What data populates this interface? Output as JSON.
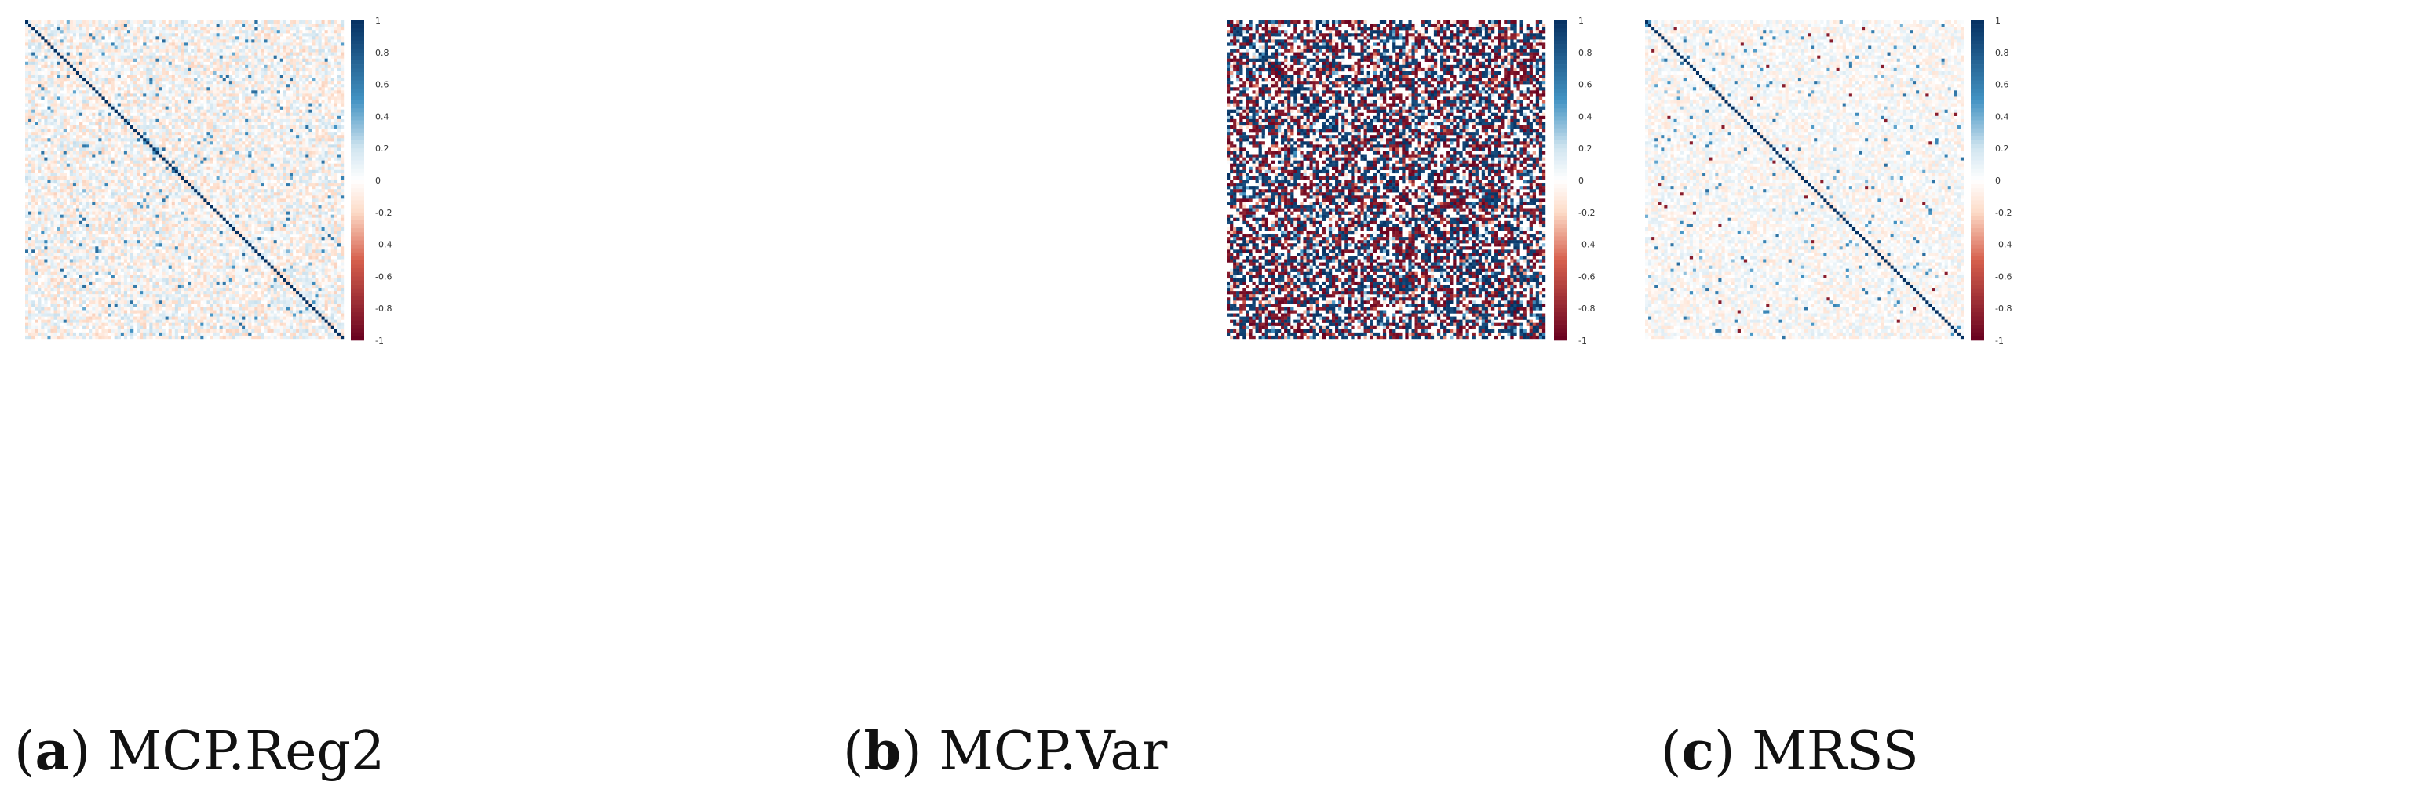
{
  "colors": {
    "neg_strong": "#67001f",
    "neg_mid": "#d6604d",
    "neg_light": "#fddbc7",
    "zero": "#ffffff",
    "pos_light": "#d1e5f0",
    "pos_mid": "#4393c3",
    "pos_strong": "#053061"
  },
  "colorbar_ticks": [
    "1",
    "0.8",
    "0.6",
    "0.4",
    "0.2",
    "0",
    "-0.2",
    "-0.4",
    "-0.6",
    "-0.8",
    "-1"
  ],
  "panels": [
    {
      "paren_open": "(",
      "letter": "a",
      "paren_close": ")",
      "name": "MCP.Reg2"
    },
    {
      "paren_open": "(",
      "letter": "b",
      "paren_close": ")",
      "name": "MCP.Var"
    },
    {
      "paren_open": "(",
      "letter": "c",
      "paren_close": ")",
      "name": "MRSS"
    }
  ],
  "chart_data": [
    {
      "type": "heatmap",
      "title": "MCP.Reg2",
      "size": 100,
      "value_range": [
        -1,
        1
      ],
      "diagonal": 1,
      "off_diagonal": "mostly near 0 (weak, |r| < 0.3), scattered moderate positives"
    },
    {
      "type": "heatmap",
      "title": "MCP.Var",
      "size": 100,
      "value_range": [
        -1,
        1
      ],
      "diagonal": 1,
      "off_diagonal": "dense strong values near -1 and +1 with many blank (0) cells"
    },
    {
      "type": "heatmap",
      "title": "MRSS",
      "size": 100,
      "value_range": [
        -1,
        1
      ],
      "diagonal": 1,
      "off_diagonal": "mostly near 0, a few moderate positives and rare strong cells"
    }
  ]
}
